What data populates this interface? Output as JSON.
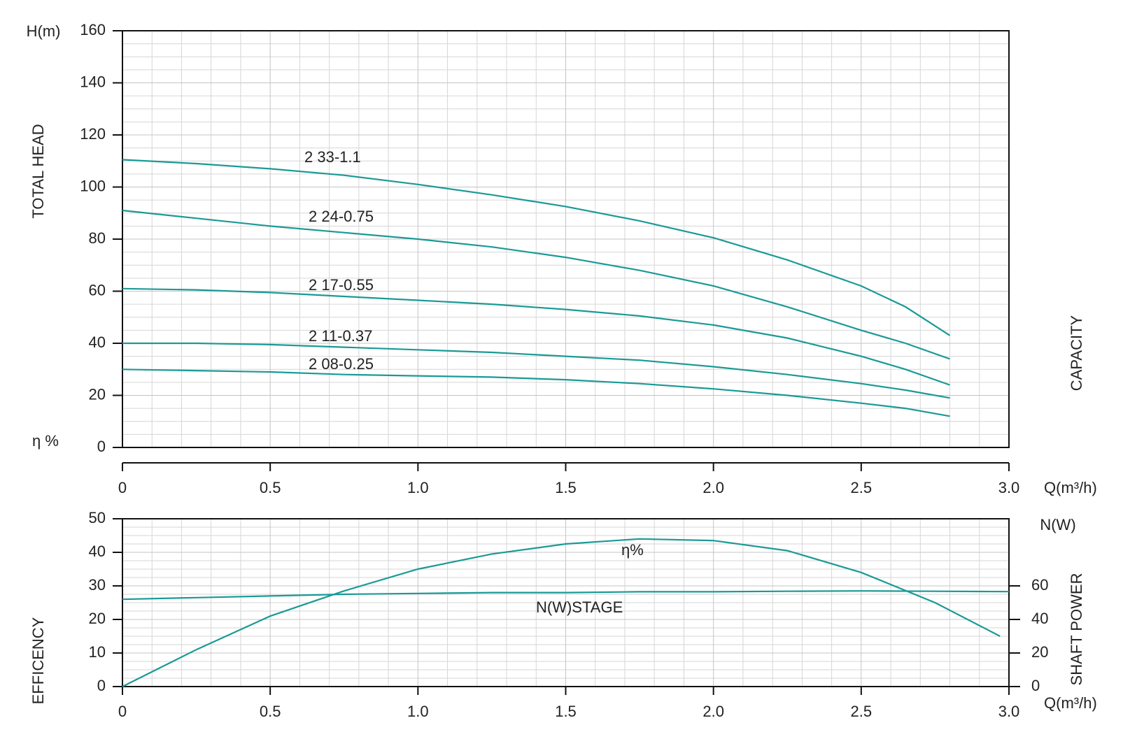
{
  "chart_data": [
    {
      "type": "line",
      "ylabel": "TOTAL HEAD",
      "yunit": "H(m)",
      "xlabel": "Q(m³/h)",
      "right_label": "CAPACITY",
      "x": [
        0,
        0.25,
        0.5,
        0.75,
        1.0,
        1.25,
        1.5,
        1.75,
        2.0,
        2.25,
        2.5,
        2.65,
        2.8
      ],
      "series": [
        {
          "name": "2 33-1.1",
          "color": "#1a9a96",
          "values": [
            110.5,
            109,
            107,
            104.5,
            101,
            97,
            92.5,
            87,
            80.5,
            72,
            62,
            54,
            43
          ]
        },
        {
          "name": "2 24-0.75",
          "color": "#1a9a96",
          "values": [
            91,
            88,
            85,
            82.5,
            80,
            77,
            73,
            68,
            62,
            54,
            45,
            40,
            34
          ]
        },
        {
          "name": "2 17-0.55",
          "color": "#1a9a96",
          "values": [
            61,
            60.5,
            59.5,
            58,
            56.5,
            55,
            53,
            50.5,
            47,
            42,
            35,
            30,
            24
          ]
        },
        {
          "name": "2 11-0.37",
          "color": "#1a9a96",
          "values": [
            40,
            40,
            39.5,
            38.5,
            37.5,
            36.5,
            35,
            33.5,
            31,
            28,
            24.5,
            22,
            19
          ]
        },
        {
          "name": "2 08-0.25",
          "color": "#1a9a96",
          "values": [
            30,
            29.5,
            29,
            28,
            27.5,
            27,
            26,
            24.5,
            22.5,
            20,
            17,
            15,
            12
          ]
        }
      ],
      "xlim": [
        0,
        3
      ],
      "ylim": [
        0,
        160
      ],
      "xticks": [
        0,
        0.5,
        {
          "value": 1,
          "label": "1.0"
        },
        1.5,
        {
          "value": 2,
          "label": "2.0"
        },
        2.5,
        {
          "value": 3,
          "label": "3.0"
        }
      ],
      "yticks": [
        0,
        20,
        40,
        60,
        80,
        100,
        120,
        140,
        160
      ],
      "grid": true
    },
    {
      "type": "line",
      "ylabel": "EFFICENCY",
      "yunit": "η %",
      "y2label": "SHAFT POWER",
      "y2unit": "N(W)",
      "xlabel": "Q(m³/h)",
      "series": [
        {
          "name": "η%",
          "color": "#1a9a96",
          "x": [
            0,
            0.25,
            0.5,
            0.75,
            1.0,
            1.25,
            1.5,
            1.75,
            2.0,
            2.25,
            2.5,
            2.75,
            2.97
          ],
          "values": [
            0,
            11,
            21,
            28.5,
            35,
            39.5,
            42.5,
            44,
            43.5,
            40.5,
            34,
            25,
            15
          ]
        },
        {
          "name": "N(W)STAGE",
          "color": "#1a9a96",
          "axis": "y2",
          "x": [
            0,
            0.25,
            0.5,
            0.75,
            1.0,
            1.25,
            1.5,
            1.75,
            2.0,
            2.25,
            2.5,
            2.75,
            3.0
          ],
          "values": [
            52,
            53,
            54,
            55,
            55.5,
            56,
            56,
            56.5,
            56.5,
            56.8,
            57,
            56.8,
            56.6
          ]
        }
      ],
      "xlim": [
        0,
        3
      ],
      "ylim": [
        0,
        50
      ],
      "y2lim": [
        0,
        100
      ],
      "xticks": [
        0,
        0.5,
        {
          "value": 1,
          "label": "1.0"
        },
        1.5,
        {
          "value": 2,
          "label": "2.0"
        },
        2.5,
        {
          "value": 3,
          "label": "3.0"
        }
      ],
      "yticks": [
        0,
        10,
        20,
        30,
        40,
        50
      ],
      "y2ticks": [
        0,
        20,
        40,
        60
      ],
      "grid": true
    }
  ]
}
